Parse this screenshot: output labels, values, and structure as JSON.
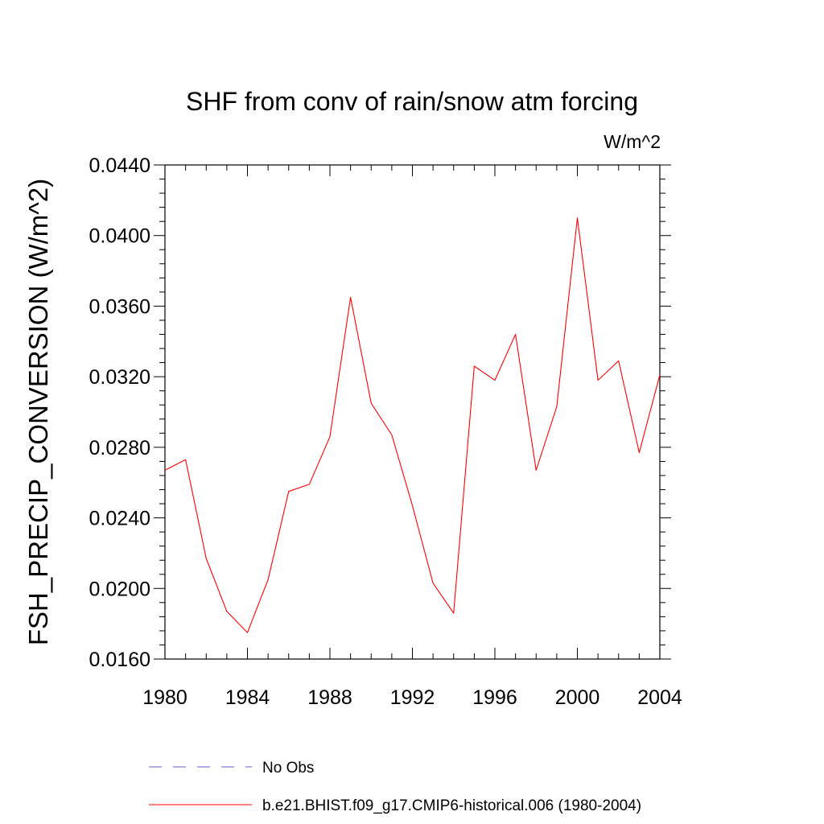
{
  "chart_data": {
    "type": "line",
    "title": "SHF from conv of rain/snow atm forcing",
    "units_label": "W/m^2",
    "ylabel": "FSH_PRECIP_CONVERSION  (W/m^2)",
    "xlabel": "",
    "xlim": [
      1980,
      2004
    ],
    "ylim": [
      0.016,
      0.044
    ],
    "x_ticks": [
      1980,
      1984,
      1988,
      1992,
      1996,
      2000,
      2004
    ],
    "x_tick_labels": [
      "1980",
      "1984",
      "1988",
      "1992",
      "1996",
      "2000",
      "2004"
    ],
    "y_ticks": [
      0.016,
      0.02,
      0.024,
      0.028,
      0.032,
      0.036,
      0.04,
      0.044
    ],
    "y_tick_labels": [
      "0.0160",
      "0.0200",
      "0.0240",
      "0.0280",
      "0.0320",
      "0.0360",
      "0.0400",
      "0.0440"
    ],
    "grid": false,
    "legend_position": "bottom",
    "series": [
      {
        "name": "b.e21.BHIST.f09_g17.CMIP6-historical.006 (1980-2004)",
        "color": "#ff0000",
        "style": "solid",
        "x": [
          1980,
          1981,
          1982,
          1983,
          1984,
          1985,
          1986,
          1987,
          1988,
          1989,
          1990,
          1991,
          1992,
          1993,
          1994,
          1995,
          1996,
          1997,
          1998,
          1999,
          2000,
          2001,
          2002,
          2003,
          2004
        ],
        "y": [
          0.0267,
          0.0273,
          0.0217,
          0.0187,
          0.0175,
          0.0205,
          0.0255,
          0.0259,
          0.0286,
          0.0365,
          0.0305,
          0.0287,
          0.0247,
          0.0203,
          0.0186,
          0.0326,
          0.0318,
          0.0344,
          0.0267,
          0.0303,
          0.041,
          0.0318,
          0.0329,
          0.0277,
          0.0321
        ]
      },
      {
        "name": "No Obs",
        "color": "#6a5acd",
        "style": "dashed",
        "x": [],
        "y": []
      }
    ]
  }
}
